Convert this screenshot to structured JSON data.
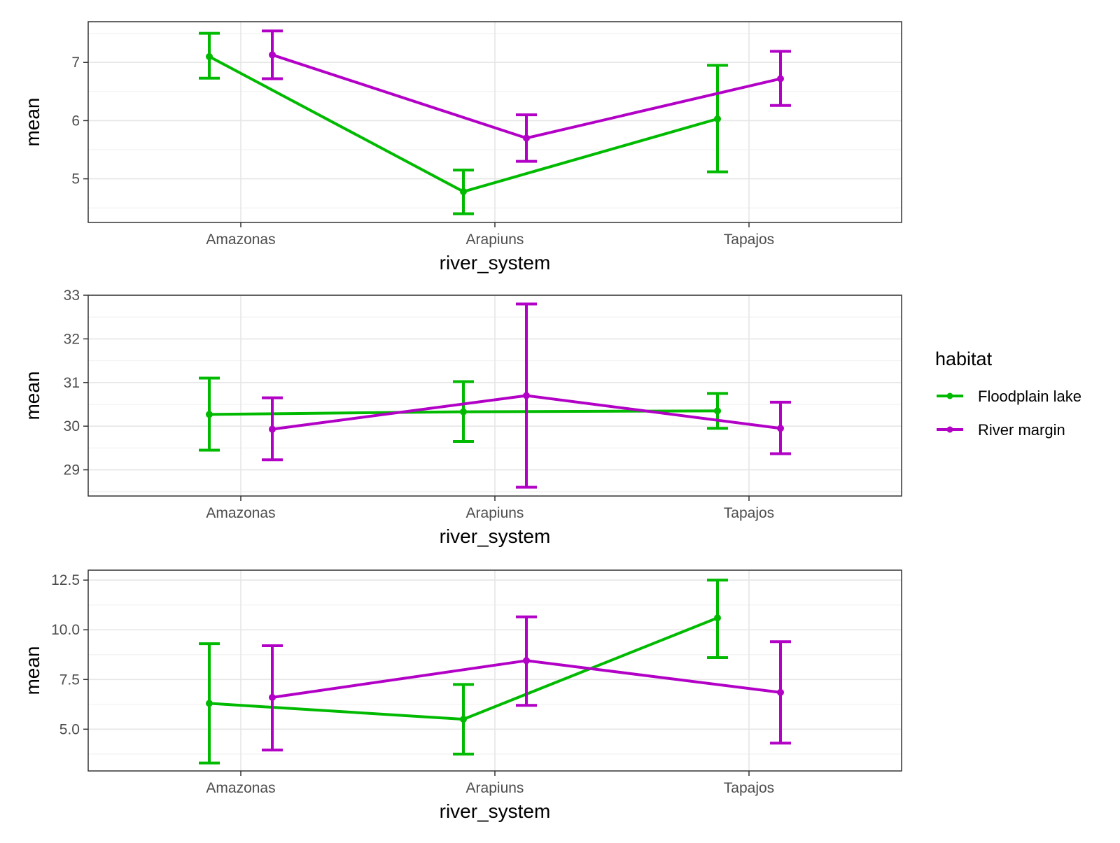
{
  "legend": {
    "title": "habitat",
    "entries": [
      {
        "label": "Floodplain lake",
        "color": "#00BA00"
      },
      {
        "label": "River margin",
        "color": "#B200C6"
      }
    ]
  },
  "chart_data": [
    {
      "type": "line",
      "categories": [
        "Amazonas",
        "Arapiuns",
        "Tapajos"
      ],
      "xlabel": "river_system",
      "ylabel": "mean",
      "ylim": [
        4.25,
        7.7
      ],
      "yticks": [
        5,
        6,
        7
      ],
      "ytick_labels": [
        "5",
        "6",
        "7"
      ],
      "grid": true,
      "error_bars": true,
      "series": [
        {
          "name": "Floodplain lake",
          "color": "#00BA00",
          "values": [
            7.1,
            4.78,
            6.03
          ],
          "lower": [
            6.73,
            4.4,
            5.12
          ],
          "upper": [
            7.5,
            5.15,
            6.95
          ]
        },
        {
          "name": "River margin",
          "color": "#B200C6",
          "values": [
            7.13,
            5.7,
            6.72
          ],
          "lower": [
            6.72,
            5.3,
            6.26
          ],
          "upper": [
            7.54,
            6.1,
            7.19
          ]
        }
      ]
    },
    {
      "type": "line",
      "categories": [
        "Amazonas",
        "Arapiuns",
        "Tapajos"
      ],
      "xlabel": "river_system",
      "ylabel": "mean",
      "ylim": [
        28.4,
        33.0
      ],
      "yticks": [
        29,
        30,
        31,
        32,
        33
      ],
      "ytick_labels": [
        "29",
        "30",
        "31",
        "32",
        "33"
      ],
      "grid": true,
      "error_bars": true,
      "series": [
        {
          "name": "Floodplain lake",
          "color": "#00BA00",
          "values": [
            30.27,
            30.33,
            30.35
          ],
          "lower": [
            29.45,
            29.65,
            29.95
          ],
          "upper": [
            31.1,
            31.02,
            30.75
          ]
        },
        {
          "name": "River margin",
          "color": "#B200C6",
          "values": [
            29.93,
            30.7,
            29.95
          ],
          "lower": [
            29.23,
            28.6,
            29.37
          ],
          "upper": [
            30.65,
            32.8,
            30.55
          ]
        }
      ]
    },
    {
      "type": "line",
      "categories": [
        "Amazonas",
        "Arapiuns",
        "Tapajos"
      ],
      "xlabel": "river_system",
      "ylabel": "mean",
      "ylim": [
        2.9,
        13.0
      ],
      "yticks": [
        5.0,
        7.5,
        10.0,
        12.5
      ],
      "ytick_labels": [
        "5.0",
        "7.5",
        "10.0",
        "12.5"
      ],
      "grid": true,
      "error_bars": true,
      "series": [
        {
          "name": "Floodplain lake",
          "color": "#00BA00",
          "values": [
            6.3,
            5.5,
            10.6
          ],
          "lower": [
            3.3,
            3.75,
            8.6
          ],
          "upper": [
            9.3,
            7.25,
            12.5
          ]
        },
        {
          "name": "River margin",
          "color": "#B200C6",
          "values": [
            6.6,
            8.45,
            6.85
          ],
          "lower": [
            3.95,
            6.2,
            4.3
          ],
          "upper": [
            9.2,
            10.65,
            9.4
          ]
        }
      ]
    }
  ]
}
